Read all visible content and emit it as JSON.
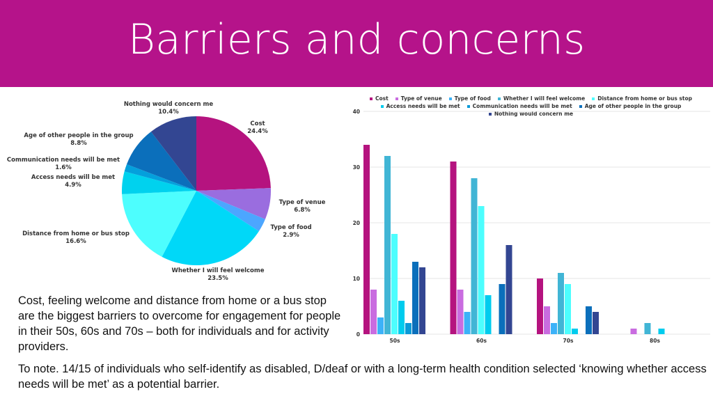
{
  "title": "Barriers and concerns",
  "summary": "Cost, feeling welcome and distance from home or a bus stop are the biggest barriers to overcome for engagement for people in their 50s, 60s and 70s – both for individuals and for activity providers.",
  "note": "To note. 14/15 of individuals who self-identify as disabled, D/deaf or with a long-term health condition selected ‘knowing whether access needs will be met’ as a potential barrier.",
  "chart_data": [
    {
      "type": "pie",
      "slices": [
        {
          "label": "Cost",
          "value": 24.4,
          "pct": "24.4%",
          "color": "#b5137f"
        },
        {
          "label": "Type of venue",
          "value": 6.8,
          "pct": "6.8%",
          "color": "#9a6ddf"
        },
        {
          "label": "Type of food",
          "value": 2.9,
          "pct": "2.9%",
          "color": "#4ca6ff"
        },
        {
          "label": "Whether I will feel welcome",
          "value": 23.5,
          "pct": "23.5%",
          "color": "#00d8f8"
        },
        {
          "label": "Distance from home or bus stop",
          "value": 16.6,
          "pct": "16.6%",
          "color": "#4dfefe"
        },
        {
          "label": "Access needs will be met",
          "value": 4.9,
          "pct": "4.9%",
          "color": "#00d2ee"
        },
        {
          "label": "Communication needs will be met",
          "value": 1.6,
          "pct": "1.6%",
          "color": "#04a0dc"
        },
        {
          "label": "Age of other people in the group",
          "value": 8.8,
          "pct": "8.8%",
          "color": "#0b6fbb"
        },
        {
          "label": "Nothing would concern me",
          "value": 10.4,
          "pct": "10.4%",
          "color": "#334692"
        }
      ]
    },
    {
      "type": "bar",
      "categories": [
        "50s",
        "60s",
        "70s",
        "80s"
      ],
      "ylim": [
        0,
        40
      ],
      "yticks": [
        0,
        10,
        20,
        30,
        40
      ],
      "grid": true,
      "legend": "top",
      "series": [
        {
          "name": "Cost",
          "color": "#b5137f",
          "values": [
            34,
            31,
            10,
            0
          ]
        },
        {
          "name": "Type of venue",
          "color": "#c96ce0",
          "values": [
            8,
            8,
            5,
            1
          ]
        },
        {
          "name": "Type of food",
          "color": "#3cb2f8",
          "values": [
            3,
            4,
            2,
            0
          ]
        },
        {
          "name": "Whether I will feel welcome",
          "color": "#41b5d5",
          "values": [
            32,
            28,
            11,
            2
          ]
        },
        {
          "name": "Distance from home or bus stop",
          "color": "#4dfefe",
          "values": [
            18,
            23,
            9,
            0
          ]
        },
        {
          "name": "Access needs will be met",
          "color": "#00ccee",
          "values": [
            6,
            7,
            1,
            1
          ]
        },
        {
          "name": "Communication needs will be met",
          "color": "#0a9ad8",
          "values": [
            2,
            0,
            0,
            0
          ]
        },
        {
          "name": "Age of other people in the group",
          "color": "#0b6fbb",
          "values": [
            13,
            9,
            5,
            0
          ]
        },
        {
          "name": "Nothing would concern me",
          "color": "#334692",
          "values": [
            12,
            16,
            4,
            0
          ]
        }
      ]
    }
  ]
}
